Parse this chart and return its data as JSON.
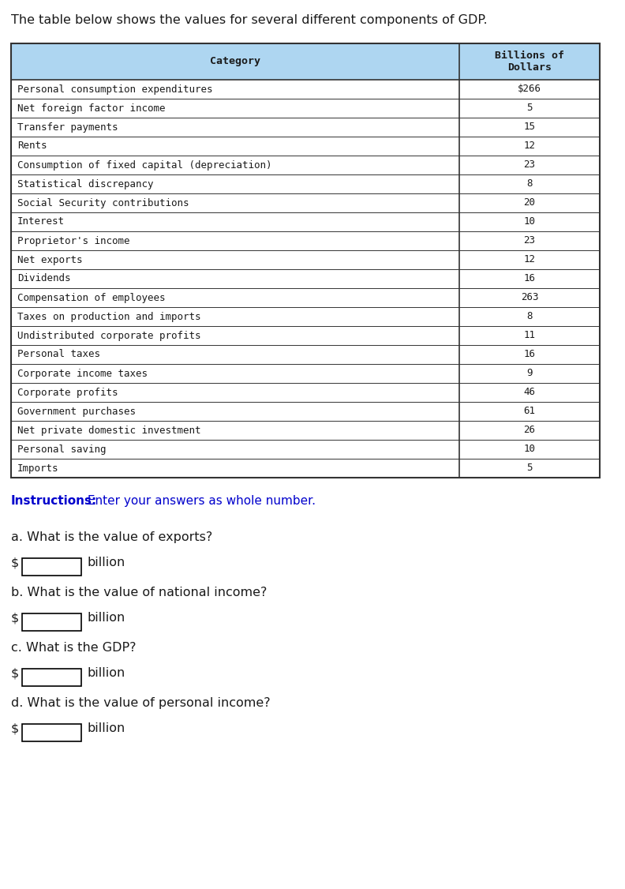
{
  "title": "The table below shows the values for several different components of GDP.",
  "header_col1": "Category",
  "header_col2": "Billions of\nDollars",
  "header_bg": "#aed6f1",
  "table_rows": [
    [
      "Personal consumption expenditures",
      "$266"
    ],
    [
      "Net foreign factor income",
      "5"
    ],
    [
      "Transfer payments",
      "15"
    ],
    [
      "Rents",
      "12"
    ],
    [
      "Consumption of fixed capital (depreciation)",
      "23"
    ],
    [
      "Statistical discrepancy",
      "8"
    ],
    [
      "Social Security contributions",
      "20"
    ],
    [
      "Interest",
      "10"
    ],
    [
      "Proprietor's income",
      "23"
    ],
    [
      "Net exports",
      "12"
    ],
    [
      "Dividends",
      "16"
    ],
    [
      "Compensation of employees",
      "263"
    ],
    [
      "Taxes on production and imports",
      "8"
    ],
    [
      "Undistributed corporate profits",
      "11"
    ],
    [
      "Personal taxes",
      "16"
    ],
    [
      "Corporate income taxes",
      "9"
    ],
    [
      "Corporate profits",
      "46"
    ],
    [
      "Government purchases",
      "61"
    ],
    [
      "Net private domestic investment",
      "26"
    ],
    [
      "Personal saving",
      "10"
    ],
    [
      "Imports",
      "5"
    ]
  ],
  "instructions_bold": "Instructions:",
  "instructions_rest": " Enter your answers as whole number.",
  "instructions_color": "#0000cc",
  "questions": [
    "a. What is the value of exports?",
    "b. What is the value of national income?",
    "c. What is the GDP?",
    "d. What is the value of personal income?"
  ],
  "answer_prefix": "$",
  "answer_suffix": "billion",
  "bg_color": "#ffffff",
  "table_border_color": "#333333",
  "text_color": "#1a1a1a",
  "mono_font": "DejaVu Sans Mono",
  "sans_font": "DejaVu Sans"
}
